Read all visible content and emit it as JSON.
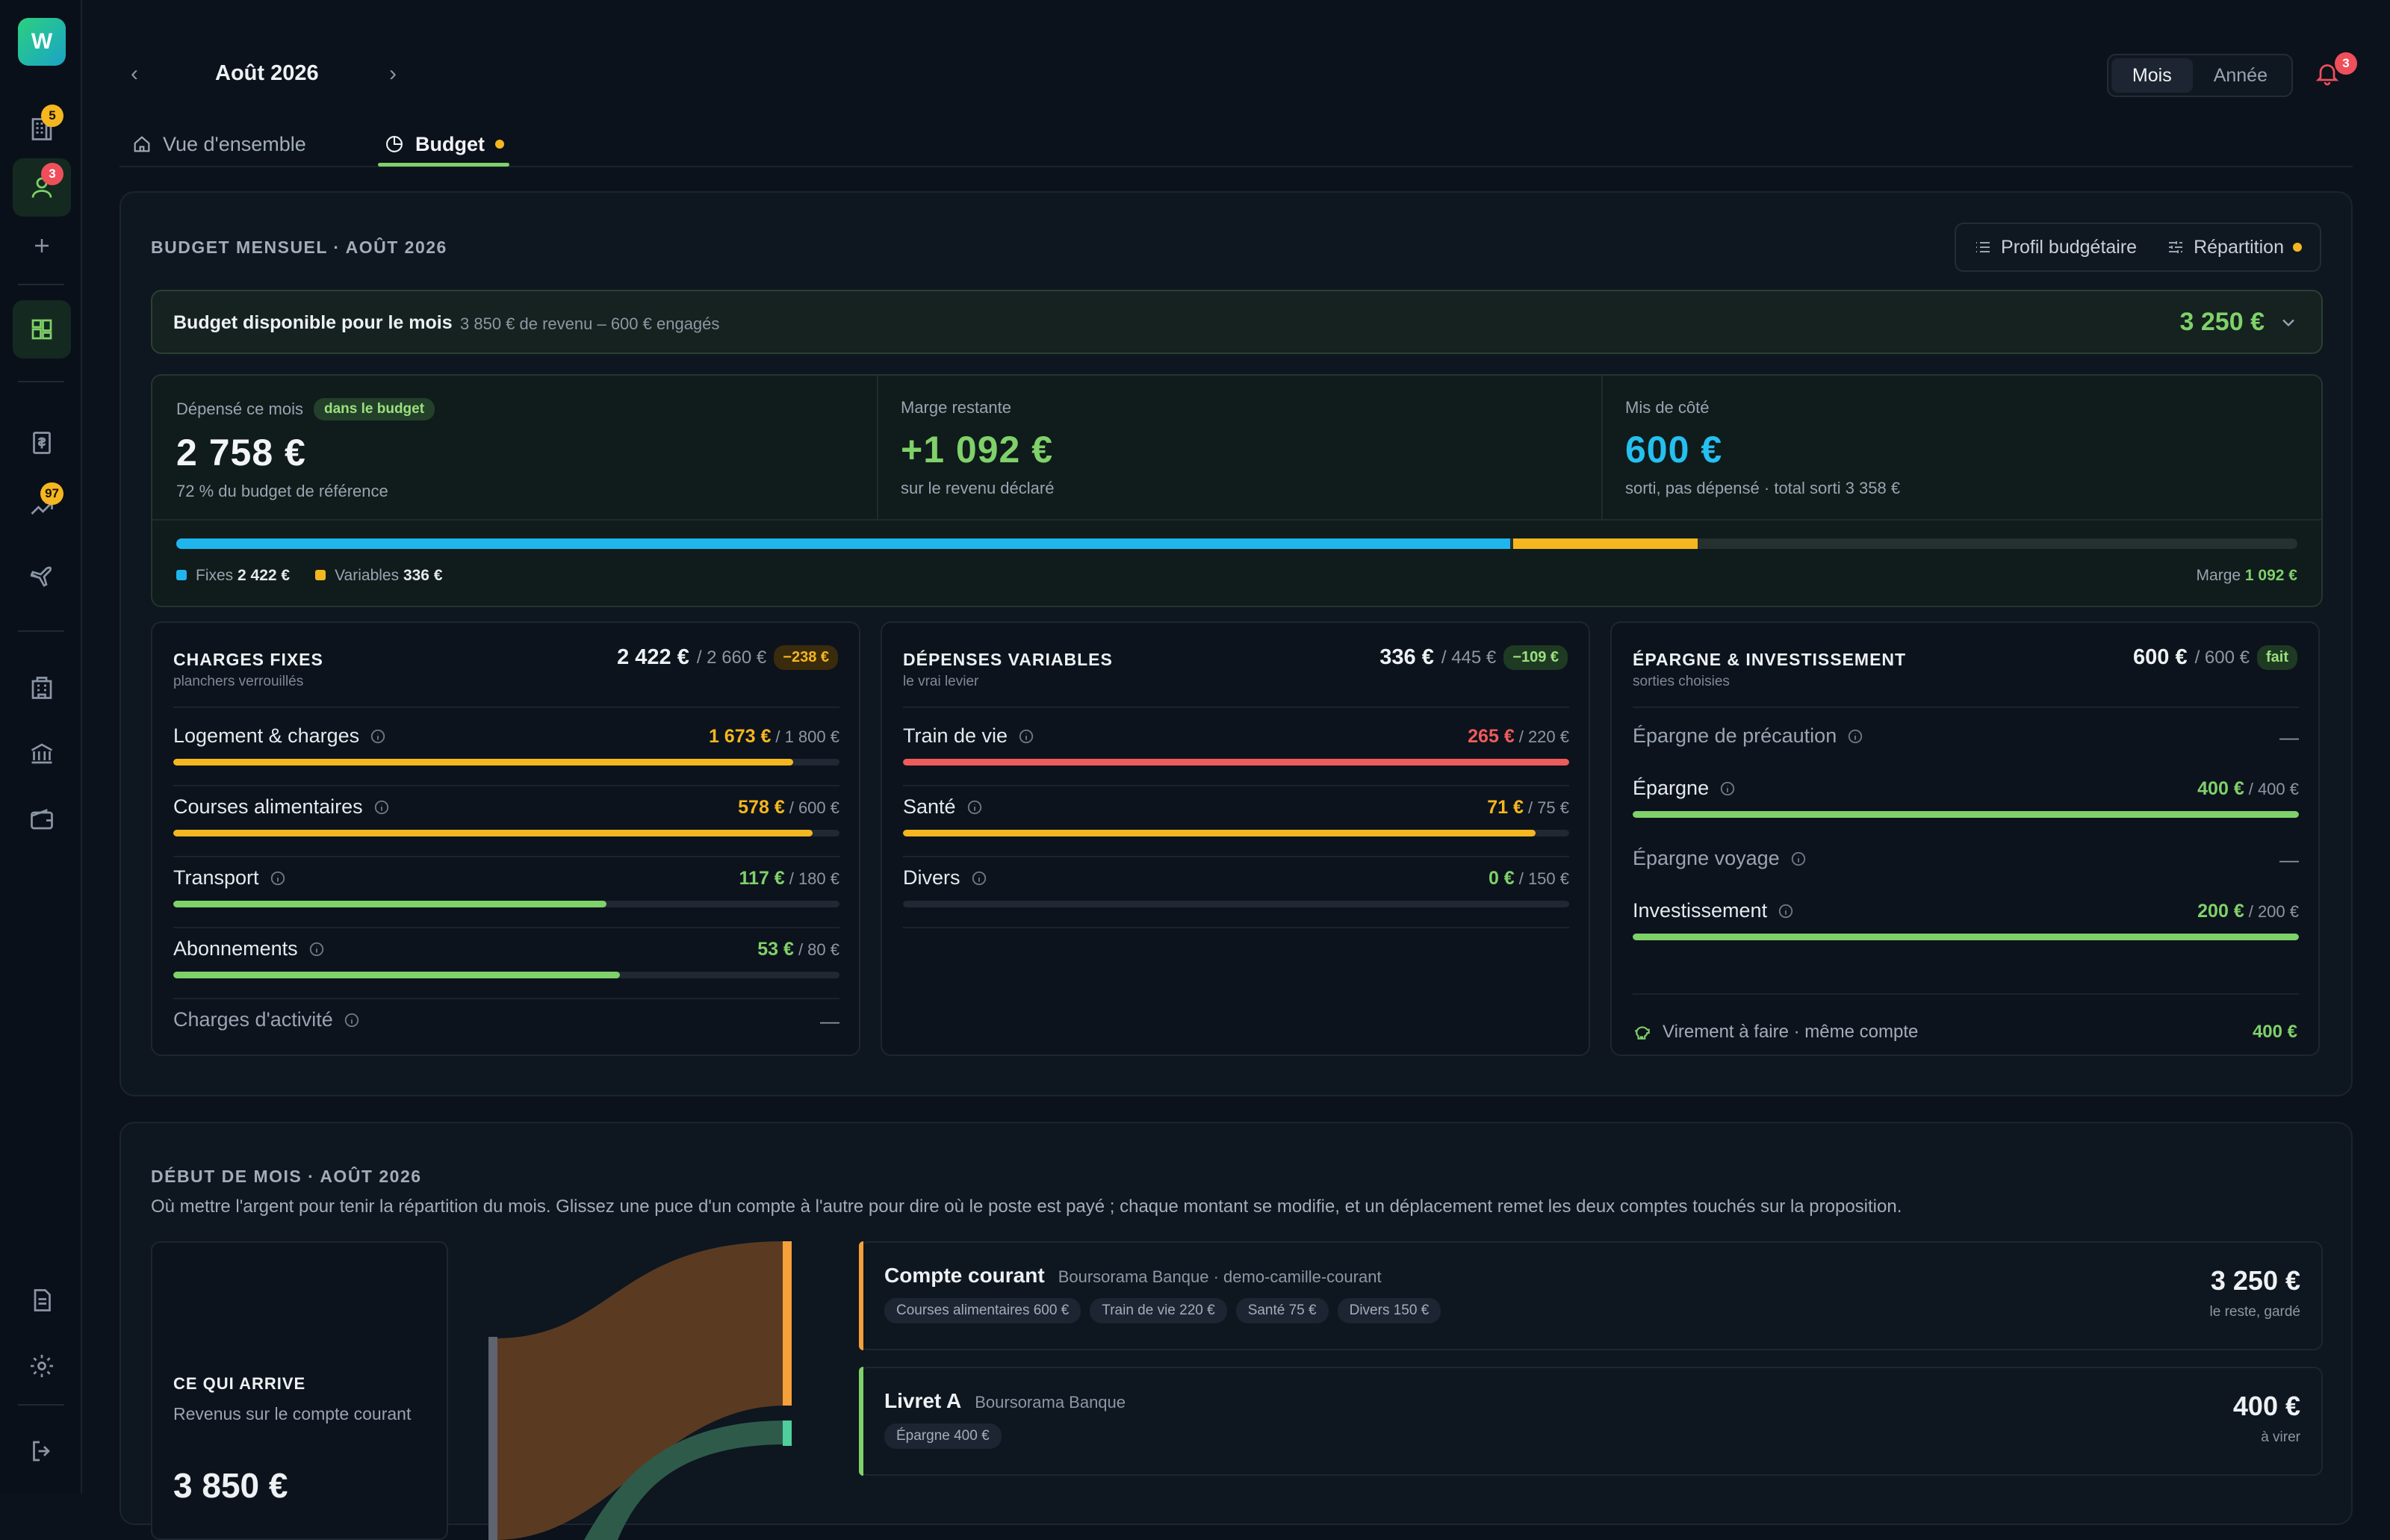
{
  "app": {
    "logo_letter": "W"
  },
  "sidebar": {
    "badges": {
      "home": "5",
      "user": "3",
      "planner": "97"
    }
  },
  "header": {
    "month": "Août 2026",
    "period_options": [
      "Mois",
      "Année"
    ],
    "notif_count": "3"
  },
  "tabs": [
    {
      "label": "Vue d'ensemble"
    },
    {
      "label": "Budget"
    }
  ],
  "budget": {
    "section_label": "BUDGET MENSUEL · AOÛT 2026",
    "actions": {
      "profile": "Profil budgétaire",
      "split": "Répartition"
    },
    "available": {
      "title": "Budget disponible pour le mois",
      "subtitle": "3 850 € de revenu – 600 € engagés",
      "value": "3 250 €"
    },
    "stats": {
      "spent": {
        "label": "Dépensé ce mois",
        "badge": "dans le budget",
        "value": "2 758 €",
        "sub": "72 % du budget de référence"
      },
      "margin": {
        "label": "Marge restante",
        "value": "+1 092 €",
        "sub": "sur le revenu déclaré"
      },
      "saved": {
        "label": "Mis de côté",
        "value": "600 €",
        "sub": "sorti, pas dépensé · total sorti 3 358 €"
      }
    },
    "progress": {
      "fixed_fraction": 0.629,
      "variable_fraction": 0.087,
      "legend": {
        "fixed_label": "Fixes",
        "fixed_value": "2 422 €",
        "variable_label": "Variables",
        "variable_value": "336 €",
        "margin_label": "Marge",
        "margin_value": "1 092 €"
      }
    },
    "colors": {
      "fixed": "#1fb6ee",
      "variable": "#f5b71f",
      "green": "#7fd16a",
      "red": "#ee5b5b",
      "cyan": "#24c0f0"
    }
  },
  "fixed": {
    "title": "CHARGES FIXES",
    "sub": "planchers verrouillés",
    "total": "2 422 €",
    "ref": "/ 2 660 €",
    "delta": "−238 €",
    "rows": [
      {
        "name": "Logement & charges",
        "value": "1 673 €",
        "ref": "/ 1 800 €",
        "fill": 0.93,
        "color": "#f5b71f"
      },
      {
        "name": "Courses alimentaires",
        "value": "578 €",
        "ref": "/ 600 €",
        "fill": 0.96,
        "color": "#f5b71f"
      },
      {
        "name": "Transport",
        "value": "117 €",
        "ref": "/ 180 €",
        "fill": 0.65,
        "color": "#7fd16a"
      },
      {
        "name": "Abonnements",
        "value": "53 €",
        "ref": "/ 80 €",
        "fill": 0.67,
        "color": "#7fd16a"
      },
      {
        "name": "Charges d'activité",
        "value": "—"
      }
    ]
  },
  "variable": {
    "title": "DÉPENSES VARIABLES",
    "sub": "le vrai levier",
    "total": "336 €",
    "ref": "/ 445 €",
    "delta": "−109 €",
    "rows": [
      {
        "name": "Train de vie",
        "value": "265 €",
        "ref": "/ 220 €",
        "fill": 1.0,
        "color": "#ee5b5b"
      },
      {
        "name": "Santé",
        "value": "71 €",
        "ref": "/ 75 €",
        "fill": 0.95,
        "color": "#f5b71f"
      },
      {
        "name": "Divers",
        "value": "0 €",
        "ref": "/ 150 €",
        "fill": 0.0,
        "color": "#7fd16a"
      }
    ]
  },
  "savings": {
    "title": "ÉPARGNE & INVESTISSEMENT",
    "sub": "sorties choisies",
    "total": "600 €",
    "ref": "/ 600 €",
    "delta": "fait",
    "rows": [
      {
        "name": "Épargne de précaution",
        "value": "—"
      },
      {
        "name": "Épargne",
        "value": "400 €",
        "ref": "/ 400 €",
        "fill": 1.0,
        "color": "#7fd16a"
      },
      {
        "name": "Épargne voyage",
        "value": "—"
      },
      {
        "name": "Investissement",
        "value": "200 €",
        "ref": "/ 200 €",
        "fill": 1.0,
        "color": "#7fd16a"
      }
    ],
    "transfer": {
      "label": "Virement à faire · même compte",
      "value": "400 €"
    }
  },
  "month_start": {
    "section_label": "DÉBUT DE MOIS · AOÛT 2026",
    "description": "Où mettre l'argent pour tenir la répartition du mois. Glissez une puce d'un compte à l'autre pour dire où le poste est payé ; chaque montant se modifie, et un déplacement remet les deux comptes touchés sur la proposition.",
    "incoming": {
      "title": "CE QUI ARRIVE",
      "sub": "Revenus sur le compte courant",
      "value": "3 850 €"
    },
    "accounts": [
      {
        "name": "Compte courant",
        "bank": "Boursorama Banque · demo-camille-courant",
        "chips": [
          "Courses alimentaires 600 €",
          "Train de vie 220 €",
          "Santé 75 €",
          "Divers 150 €"
        ],
        "value": "3 250 €",
        "note": "le reste, gardé",
        "accent": "#f5a03a"
      },
      {
        "name": "Livret A",
        "bank": "Boursorama Banque",
        "chips": [
          "Épargne 400 €"
        ],
        "value": "400 €",
        "note": "à virer",
        "accent": "#7fd16a"
      }
    ]
  }
}
